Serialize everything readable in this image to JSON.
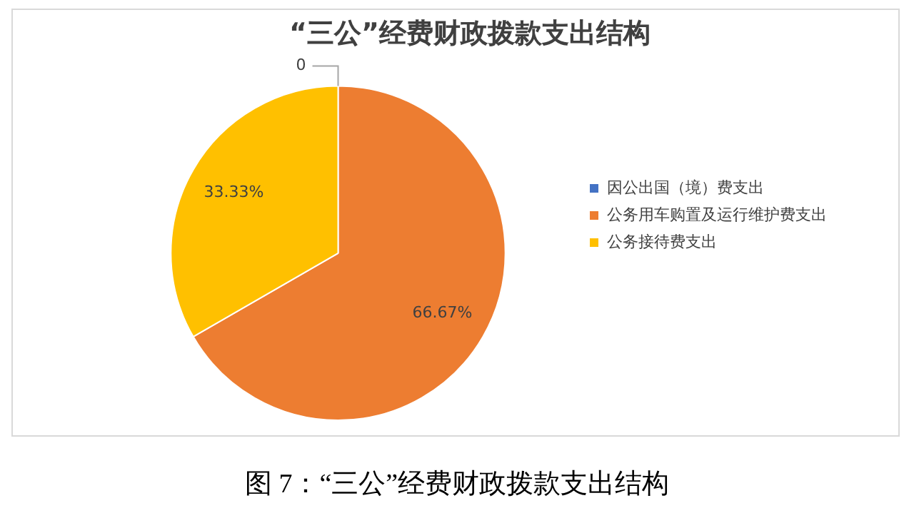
{
  "chart_data": {
    "type": "pie",
    "title": "“三公”经费财政拨款支出结构",
    "categories": [
      "因公出国（境）费支出",
      "公务用车购置及运行维护费支出",
      "公务接待费支出"
    ],
    "values": [
      0,
      66.67,
      33.33
    ],
    "value_labels": [
      "0",
      "66.67%",
      "33.33%"
    ],
    "colors": [
      "#4472c4",
      "#ed7d31",
      "#ffc000"
    ],
    "legend": "right",
    "annotations": [
      "图 7：“三公”经费财政拨款支出结构"
    ]
  }
}
